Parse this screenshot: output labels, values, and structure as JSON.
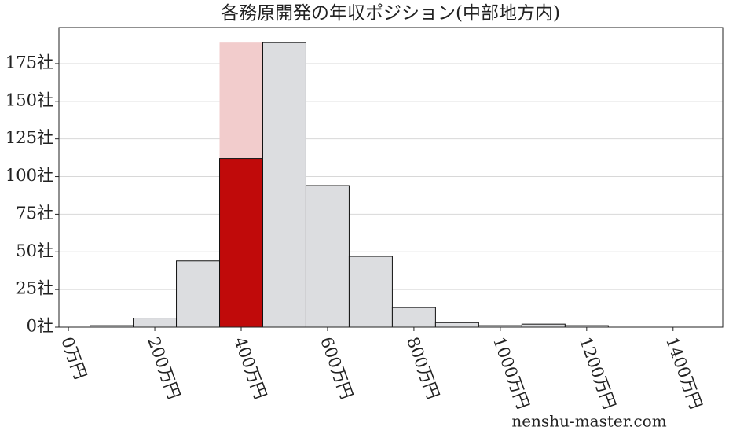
{
  "chart_data": {
    "type": "histogram",
    "title": "各務原開発の年収ポジション(中部地方内)",
    "bins": [
      50,
      150,
      250,
      350,
      450,
      550,
      650,
      750,
      850,
      950,
      1050,
      1150,
      1250
    ],
    "values": [
      1,
      6,
      44,
      112,
      189,
      94,
      47,
      13,
      3,
      1,
      2,
      1
    ],
    "color": "#dcdde0",
    "highlight_index": 3,
    "highlight_color": "#c00a0a",
    "highlight_band_color": "#f2cccc",
    "xlim": [
      -22,
      1515
    ],
    "ylim": [
      0,
      199
    ],
    "xticks": [
      {
        "value": 0,
        "label": "0万円"
      },
      {
        "value": 200,
        "label": "200万円"
      },
      {
        "value": 400,
        "label": "400万円"
      },
      {
        "value": 600,
        "label": "600万円"
      },
      {
        "value": 800,
        "label": "800万円"
      },
      {
        "value": 1000,
        "label": "1000万円"
      },
      {
        "value": 1200,
        "label": "1200万円"
      },
      {
        "value": 1400,
        "label": "1400万円"
      }
    ],
    "yticks": [
      {
        "value": 0,
        "label": "0社"
      },
      {
        "value": 25,
        "label": "25社"
      },
      {
        "value": 50,
        "label": "50社"
      },
      {
        "value": 75,
        "label": "75社"
      },
      {
        "value": 100,
        "label": "100社"
      },
      {
        "value": 125,
        "label": "125社"
      },
      {
        "value": 150,
        "label": "150社"
      },
      {
        "value": 175,
        "label": "175社"
      }
    ],
    "grid": true,
    "watermark": "nenshu-master.com"
  }
}
